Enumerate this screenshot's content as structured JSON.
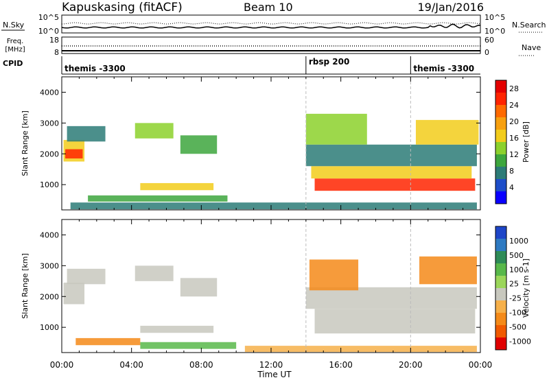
{
  "header": {
    "station": "Kapuskasing (fitACF)",
    "beam": "Beam 10",
    "date": "19/Jan/2016"
  },
  "noise_panel": {
    "left_label": "N.Sky",
    "right_label": "N.Search",
    "left_ticks": [
      "10^5",
      "10^0"
    ],
    "right_ticks": [
      "10^5",
      "10^0"
    ]
  },
  "freq_panel": {
    "left_label_1": "Freq.",
    "left_label_2": "[MHz]",
    "right_label": "Nave",
    "left_ticks": [
      "18",
      "8"
    ],
    "right_ticks": [
      "60",
      "0"
    ]
  },
  "cpid": {
    "label": "CPID",
    "segments": [
      {
        "name": "themis -3300",
        "start": 0,
        "end": 14
      },
      {
        "name": "rbsp 200",
        "start": 14,
        "end": 20
      },
      {
        "name": "themis -3300",
        "start": 20,
        "end": 24
      }
    ]
  },
  "x_axis": {
    "label": "Time UT",
    "ticks": [
      "00:00",
      "04:00",
      "08:00",
      "12:00",
      "16:00",
      "20:00",
      "00:00"
    ]
  },
  "power_colorbar": {
    "label": "Power [dB]",
    "ticks": [
      "4",
      "8",
      "12",
      "16",
      "20",
      "24",
      "28"
    ],
    "colors": [
      "#0a00ff",
      "#1e4ec9",
      "#2c7b77",
      "#3da63d",
      "#8cd12c",
      "#f2cc1b",
      "#f7a00f",
      "#ff6a00",
      "#ff2400",
      "#e40000"
    ]
  },
  "velocity_colorbar": {
    "label": "Velocity [m s-1]",
    "ticks": [
      "1000",
      "500",
      "100",
      "25",
      "-25",
      "-100",
      "-500",
      "-1000"
    ],
    "colors": [
      "#1e46c8",
      "#2e7ac2",
      "#2e8b57",
      "#58b84a",
      "#9bd65a",
      "#c8c8be",
      "#f6b04a",
      "#f48a19",
      "#f05a00",
      "#e00000"
    ]
  },
  "chart_data": [
    {
      "type": "heatmap",
      "title": "",
      "xlabel": "Time UT",
      "ylabel": "Slant Range [km]",
      "xlim": [
        0,
        24
      ],
      "ylim": [
        180,
        4500
      ],
      "yticks": [
        "1000",
        "2000",
        "3000",
        "4000"
      ],
      "color_quantity": "Power [dB]",
      "regions": [
        {
          "t0": 0.1,
          "t1": 1.3,
          "r0": 1750,
          "r1": 2450,
          "value": 14
        },
        {
          "t0": 0.2,
          "t1": 1.2,
          "r0": 1850,
          "r1": 2150,
          "value": 24
        },
        {
          "t0": 0.3,
          "t1": 2.5,
          "r0": 2400,
          "r1": 2900,
          "value": 6
        },
        {
          "t0": 4.2,
          "t1": 6.4,
          "r0": 2500,
          "r1": 3000,
          "value": 10
        },
        {
          "t0": 6.8,
          "t1": 8.9,
          "r0": 2000,
          "r1": 2600,
          "value": 9
        },
        {
          "t0": 4.5,
          "t1": 8.7,
          "r0": 820,
          "r1": 1050,
          "value": 12
        },
        {
          "t0": 1.5,
          "t1": 9.5,
          "r0": 450,
          "r1": 650,
          "value": 8
        },
        {
          "t0": 14.5,
          "t1": 23.7,
          "r0": 800,
          "r1": 1200,
          "value": 24
        },
        {
          "t0": 14.3,
          "t1": 23.5,
          "r0": 1200,
          "r1": 1600,
          "value": 14
        },
        {
          "t0": 14.0,
          "t1": 23.8,
          "r0": 1600,
          "r1": 2300,
          "value": 7
        },
        {
          "t0": 20.3,
          "t1": 23.9,
          "r0": 2300,
          "r1": 3100,
          "value": 13
        },
        {
          "t0": 14.0,
          "t1": 17.5,
          "r0": 2300,
          "r1": 3300,
          "value": 10
        },
        {
          "t0": 0.5,
          "t1": 23.8,
          "r0": 200,
          "r1": 420,
          "value": 6
        }
      ]
    },
    {
      "type": "heatmap",
      "title": "",
      "xlabel": "Time UT",
      "ylabel": "Slant Range [km]",
      "xlim": [
        0,
        24
      ],
      "ylim": [
        180,
        4500
      ],
      "yticks": [
        "1000",
        "2000",
        "3000",
        "4000"
      ],
      "color_quantity": "Velocity [m s-1]",
      "regions": [
        {
          "t0": 0.1,
          "t1": 1.3,
          "r0": 1750,
          "r1": 2450,
          "value": 0
        },
        {
          "t0": 0.3,
          "t1": 2.5,
          "r0": 2400,
          "r1": 2900,
          "value": 0
        },
        {
          "t0": 4.2,
          "t1": 6.4,
          "r0": 2500,
          "r1": 3000,
          "value": 0
        },
        {
          "t0": 6.8,
          "t1": 8.9,
          "r0": 2000,
          "r1": 2600,
          "value": 0
        },
        {
          "t0": 4.5,
          "t1": 8.7,
          "r0": 820,
          "r1": 1050,
          "value": 0
        },
        {
          "t0": 0.8,
          "t1": 4.5,
          "r0": 420,
          "r1": 650,
          "value": -200
        },
        {
          "t0": 4.5,
          "t1": 10.0,
          "r0": 300,
          "r1": 520,
          "value": 60
        },
        {
          "t0": 14.5,
          "t1": 23.7,
          "r0": 800,
          "r1": 1600,
          "value": 0
        },
        {
          "t0": 14.0,
          "t1": 23.8,
          "r0": 1600,
          "r1": 2300,
          "value": 0
        },
        {
          "t0": 14.2,
          "t1": 17.0,
          "r0": 2200,
          "r1": 3200,
          "value": -300
        },
        {
          "t0": 20.5,
          "t1": 23.8,
          "r0": 2400,
          "r1": 3300,
          "value": -300
        },
        {
          "t0": 10.5,
          "t1": 23.8,
          "r0": 200,
          "r1": 400,
          "value": -60
        }
      ]
    }
  ]
}
